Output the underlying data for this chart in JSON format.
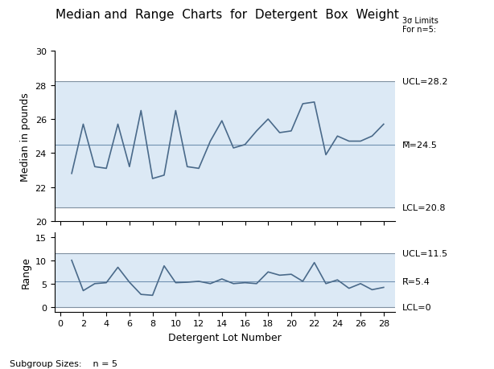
{
  "title": "Median and  Range  Charts  for  Detergent  Box  Weight",
  "subtitle": "3σ Limits\nFor n=5:",
  "xlabel": "Detergent Lot Number",
  "ylabel_top": "Median in pounds",
  "ylabel_bottom": "Range",
  "footer": "Subgroup Sizes:    n = 5",
  "x": [
    1,
    2,
    3,
    4,
    5,
    6,
    7,
    8,
    9,
    10,
    11,
    12,
    13,
    14,
    15,
    16,
    17,
    18,
    19,
    20,
    21,
    22,
    23,
    24,
    25,
    26,
    27,
    28
  ],
  "median_y": [
    22.8,
    25.7,
    23.2,
    23.1,
    25.7,
    23.2,
    26.5,
    22.5,
    22.7,
    26.5,
    23.2,
    23.1,
    24.7,
    25.9,
    24.3,
    24.5,
    25.3,
    26.0,
    25.2,
    25.3,
    26.9,
    27.0,
    23.9,
    25.0,
    24.7,
    24.7,
    25.0,
    25.7
  ],
  "range_y": [
    10.0,
    3.5,
    5.0,
    5.2,
    8.5,
    5.3,
    2.7,
    2.5,
    8.8,
    5.2,
    5.3,
    5.5,
    5.0,
    6.0,
    5.0,
    5.2,
    5.0,
    7.5,
    6.8,
    7.0,
    5.5,
    9.5,
    5.0,
    5.8,
    4.0,
    5.0,
    3.7,
    4.2
  ],
  "median_ucl": 28.2,
  "median_cl": 24.5,
  "median_lcl": 20.8,
  "range_ucl": 11.5,
  "range_cl": 5.4,
  "range_lcl": 0,
  "median_ylim": [
    20,
    30
  ],
  "range_ylim": [
    -1,
    16
  ],
  "median_yticks": [
    20,
    22,
    24,
    26,
    28,
    30
  ],
  "range_yticks": [
    0,
    5,
    10,
    15
  ],
  "xticks": [
    0,
    2,
    4,
    6,
    8,
    10,
    12,
    14,
    16,
    18,
    20,
    22,
    24,
    26,
    28
  ],
  "line_color": "#4a6a8a",
  "bg_color": "#dce9f5",
  "outer_bg": "#ffffff",
  "cl_color": "#7090b0",
  "limit_color": "#8090a0",
  "title_fontsize": 11,
  "label_fontsize": 9,
  "tick_fontsize": 8,
  "annot_fontsize": 8,
  "subtitle_fontsize": 7
}
